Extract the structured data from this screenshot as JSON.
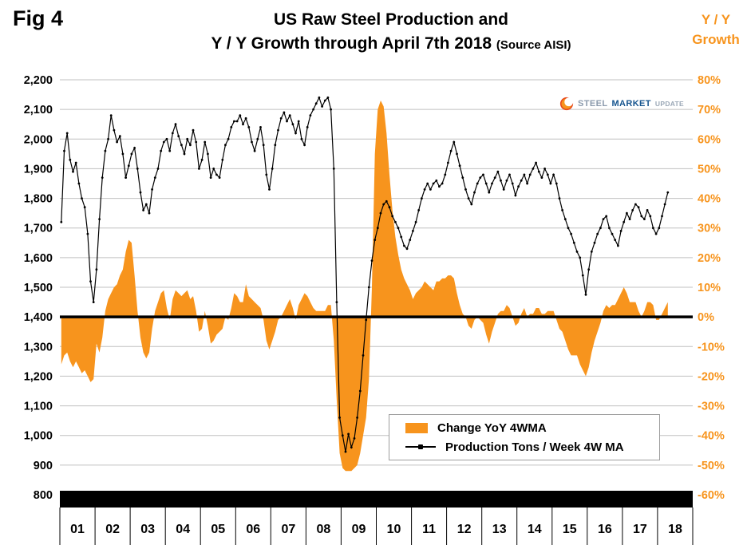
{
  "figure_label": "Fig 4",
  "title_line1": "US Raw Steel Production and",
  "title_line2": "Y / Y Growth through April 7th 2018",
  "title_source": "(Source AISI)",
  "right_axis_title": {
    "line1": "Y / Y",
    "line2": "Growth"
  },
  "watermark": {
    "steel": "STEEL",
    "market": "MARKET",
    "update": "UPDATE"
  },
  "colors": {
    "orange": "#F7941D",
    "line": "#000000",
    "grid": "#C0C0C0",
    "axis_black": "#000000"
  },
  "chart_data": {
    "type": "combo",
    "title": "US Raw Steel Production and Y / Y Growth through April 7th 2018",
    "source": "AISI",
    "x": {
      "year_labels": [
        "01",
        "02",
        "03",
        "04",
        "05",
        "06",
        "07",
        "08",
        "09",
        "10",
        "11",
        "12",
        "13",
        "14",
        "15",
        "16",
        "17",
        "18"
      ],
      "start": "2001-01",
      "end": "2018-04"
    },
    "y_left": {
      "label": "Production Tons / Week",
      "min": 800,
      "max": 2200,
      "step": 100
    },
    "y_right": {
      "label": "Y / Y Growth",
      "min": -60,
      "max": 80,
      "step": 10,
      "unit": "%"
    },
    "zero_align": {
      "left_value": 1400,
      "right_value": 0
    },
    "series": [
      {
        "name": "Change YoY 4WMA",
        "type": "area",
        "axis": "right",
        "color": "#F7941D",
        "values_by_year": [
          [
            -16,
            -13,
            -12,
            -15,
            -17,
            -15,
            -17,
            -19,
            -18,
            -20,
            -22,
            -21
          ],
          [
            -9,
            -12,
            -7,
            2,
            6,
            8,
            10,
            11,
            14,
            16,
            22,
            26
          ],
          [
            25,
            14,
            2,
            -7,
            -12,
            -14,
            -12,
            -4,
            2,
            5,
            8,
            9
          ],
          [
            3,
            -1,
            6,
            9,
            8,
            7,
            8,
            9,
            6,
            7,
            2,
            -5
          ],
          [
            -4,
            2,
            -3,
            -9,
            -8,
            -6,
            -5,
            -4,
            0,
            -1,
            3,
            8
          ],
          [
            7,
            5,
            5,
            11,
            7,
            6,
            5,
            4,
            3,
            -1,
            -8,
            -11
          ],
          [
            -8,
            -5,
            -1,
            0,
            2,
            4,
            6,
            3,
            -1,
            4,
            6,
            8
          ],
          [
            7,
            5,
            3,
            2,
            2,
            2,
            2,
            4,
            4,
            -8,
            -28,
            -46
          ],
          [
            -51,
            -52,
            -52,
            -52,
            -51,
            -50,
            -46,
            -40,
            -34,
            -21,
            10,
            55
          ],
          [
            70,
            73,
            71,
            62,
            48,
            36,
            27,
            21,
            16,
            13,
            11,
            9
          ],
          [
            6,
            8,
            9,
            10,
            12,
            11,
            10,
            9,
            12,
            12,
            13,
            13
          ],
          [
            14,
            14,
            13,
            8,
            4,
            1,
            0,
            -3,
            -4,
            -1,
            0,
            -1
          ],
          [
            -2,
            -6,
            -9,
            -5,
            -2,
            1,
            2,
            2,
            4,
            3,
            0,
            -3
          ],
          [
            -2,
            1,
            3,
            0,
            1,
            1,
            3,
            3,
            1,
            1,
            2,
            2
          ],
          [
            2,
            -1,
            -4,
            -5,
            -8,
            -11,
            -13,
            -13,
            -13,
            -16,
            -18,
            -20
          ],
          [
            -17,
            -12,
            -8,
            -5,
            -2,
            2,
            4,
            3,
            4,
            4,
            6,
            8
          ],
          [
            10,
            8,
            5,
            5,
            5,
            2,
            0,
            2,
            5,
            5,
            4,
            -1
          ],
          [
            -1,
            1,
            3,
            5
          ]
        ]
      },
      {
        "name": "Production Tons / Week 4W MA",
        "type": "line",
        "axis": "left",
        "color": "#000000",
        "values_by_year": [
          [
            1720,
            1960,
            2020,
            1930,
            1890,
            1920,
            1850,
            1800,
            1770,
            1680,
            1520,
            1450
          ],
          [
            1560,
            1730,
            1870,
            1960,
            2000,
            2080,
            2030,
            1990,
            2010,
            1950,
            1870,
            1910
          ],
          [
            1950,
            1970,
            1900,
            1820,
            1760,
            1780,
            1750,
            1830,
            1870,
            1900,
            1960,
            1990
          ],
          [
            2000,
            1960,
            2020,
            2050,
            2010,
            1980,
            1950,
            2000,
            1980,
            2030,
            1990,
            1900
          ],
          [
            1930,
            1990,
            1950,
            1870,
            1900,
            1880,
            1870,
            1930,
            1980,
            2000,
            2040,
            2060
          ],
          [
            2060,
            2080,
            2050,
            2070,
            2040,
            1990,
            1960,
            2000,
            2040,
            1980,
            1880,
            1830
          ],
          [
            1900,
            1980,
            2030,
            2070,
            2090,
            2060,
            2080,
            2050,
            2020,
            2060,
            2000,
            1980
          ],
          [
            2040,
            2080,
            2100,
            2120,
            2140,
            2110,
            2130,
            2140,
            2100,
            1900,
            1450,
            1060
          ],
          [
            1000,
            945,
            1005,
            960,
            990,
            1060,
            1150,
            1270,
            1390,
            1500,
            1590,
            1660
          ],
          [
            1700,
            1750,
            1780,
            1790,
            1770,
            1740,
            1720,
            1700,
            1670,
            1640,
            1630,
            1660
          ],
          [
            1690,
            1720,
            1760,
            1800,
            1830,
            1850,
            1830,
            1850,
            1860,
            1840,
            1850,
            1880
          ],
          [
            1920,
            1960,
            1990,
            1950,
            1910,
            1870,
            1830,
            1800,
            1780,
            1820,
            1850,
            1870
          ],
          [
            1880,
            1850,
            1820,
            1850,
            1870,
            1890,
            1860,
            1830,
            1860,
            1880,
            1850,
            1810
          ],
          [
            1840,
            1860,
            1880,
            1850,
            1880,
            1900,
            1920,
            1890,
            1870,
            1900,
            1880,
            1850
          ],
          [
            1880,
            1850,
            1800,
            1760,
            1730,
            1700,
            1680,
            1650,
            1620,
            1600,
            1540,
            1475
          ],
          [
            1560,
            1620,
            1650,
            1680,
            1700,
            1730,
            1740,
            1700,
            1680,
            1660,
            1640,
            1690
          ],
          [
            1720,
            1750,
            1730,
            1760,
            1780,
            1770,
            1740,
            1730,
            1760,
            1740,
            1700,
            1680
          ],
          [
            1700,
            1740,
            1780,
            1820
          ]
        ]
      }
    ]
  }
}
